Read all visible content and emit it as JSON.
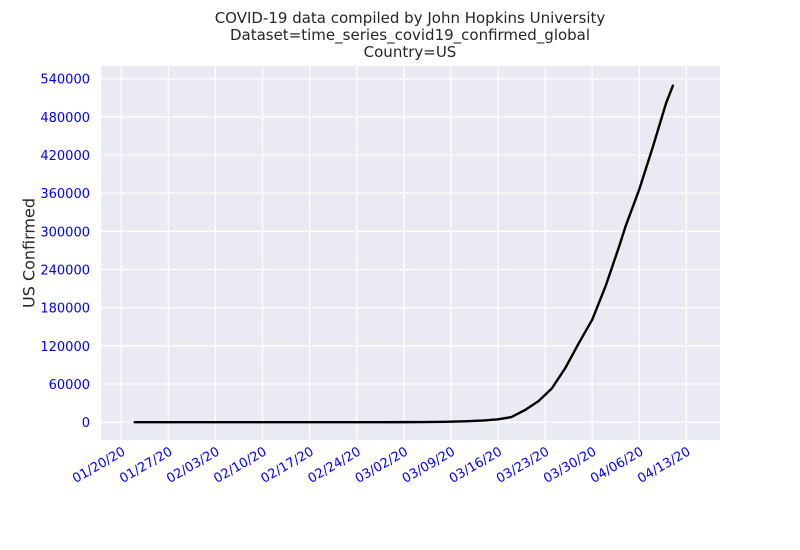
{
  "chart_data": {
    "type": "line",
    "title": [
      "COVID-19 data compiled by John Hopkins University",
      "Dataset=time_series_covid19_confirmed_global",
      "Country=US"
    ],
    "xlabel": "",
    "ylabel": "US Confirmed",
    "ylim": [
      -28000,
      560000
    ],
    "xlim": [
      "01/17/20",
      "04/18/20"
    ],
    "yticks": [
      0,
      60000,
      120000,
      180000,
      240000,
      300000,
      360000,
      420000,
      480000,
      540000
    ],
    "xticks": [
      {
        "date": "2020-01-20",
        "label": "01/20/20"
      },
      {
        "date": "2020-01-27",
        "label": "01/27/20"
      },
      {
        "date": "2020-02-03",
        "label": "02/03/20"
      },
      {
        "date": "2020-02-10",
        "label": "02/10/20"
      },
      {
        "date": "2020-02-17",
        "label": "02/17/20"
      },
      {
        "date": "2020-02-24",
        "label": "02/24/20"
      },
      {
        "date": "2020-03-02",
        "label": "03/02/20"
      },
      {
        "date": "2020-03-09",
        "label": "03/09/20"
      },
      {
        "date": "2020-03-16",
        "label": "03/16/20"
      },
      {
        "date": "2020-03-23",
        "label": "03/23/20"
      },
      {
        "date": "2020-03-30",
        "label": "03/30/20"
      },
      {
        "date": "2020-04-06",
        "label": "04/06/20"
      },
      {
        "date": "2020-04-13",
        "label": "04/13/20"
      }
    ],
    "grid": true,
    "series": [
      {
        "color": "#000000",
        "points": [
          [
            "2020-01-22",
            1
          ],
          [
            "2020-01-29",
            5
          ],
          [
            "2020-02-05",
            12
          ],
          [
            "2020-02-12",
            13
          ],
          [
            "2020-02-19",
            15
          ],
          [
            "2020-02-26",
            60
          ],
          [
            "2020-03-02",
            100
          ],
          [
            "2020-03-05",
            220
          ],
          [
            "2020-03-08",
            540
          ],
          [
            "2020-03-11",
            1300
          ],
          [
            "2020-03-14",
            2700
          ],
          [
            "2020-03-16",
            4600
          ],
          [
            "2020-03-18",
            8000
          ],
          [
            "2020-03-20",
            19000
          ],
          [
            "2020-03-22",
            33000
          ],
          [
            "2020-03-24",
            53000
          ],
          [
            "2020-03-26",
            85000
          ],
          [
            "2020-03-28",
            124000
          ],
          [
            "2020-03-30",
            161000
          ],
          [
            "2020-04-01",
            214000
          ],
          [
            "2020-04-03",
            276000
          ],
          [
            "2020-04-04",
            309000
          ],
          [
            "2020-04-06",
            366000
          ],
          [
            "2020-04-08",
            432000
          ],
          [
            "2020-04-10",
            502000
          ],
          [
            "2020-04-11",
            529000
          ]
        ]
      }
    ]
  },
  "colors": {
    "axes_bg": "#eaeaf2",
    "grid": "#ffffff",
    "tick_label": "#0000ff",
    "line": "#000000",
    "text": "#262626"
  }
}
